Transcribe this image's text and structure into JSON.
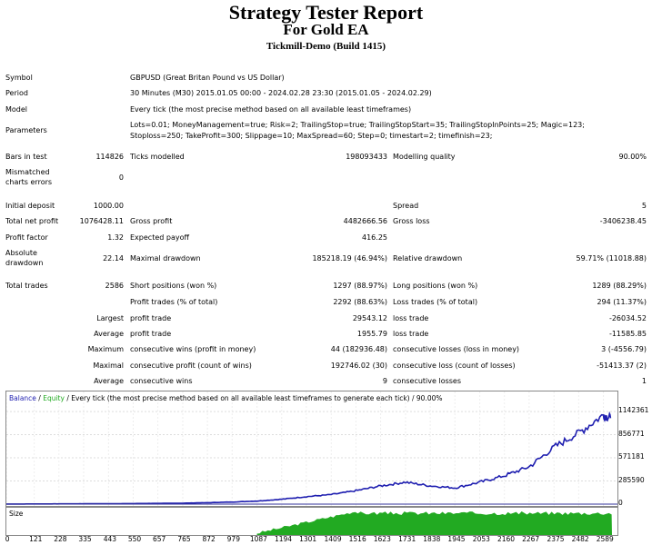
{
  "report": {
    "title": "Strategy Tester Report",
    "subtitle": "For Gold EA",
    "server": "Tickmill-Demo (Build 1415)"
  },
  "info": {
    "symbol_label": "Symbol",
    "symbol_value": "GBPUSD (Great Britan Pound vs US Dollar)",
    "period_label": "Period",
    "period_value": "30 Minutes (M30) 2015.01.05 00:00 - 2024.02.28 23:30 (2015.01.05 - 2024.02.29)",
    "model_label": "Model",
    "model_value": "Every tick (the most precise method based on all available least timeframes)",
    "params_label": "Parameters",
    "params_line1": "Lots=0.01; MoneyManagement=true; Risk=2; TrailingStop=true; TrailingStopStart=35; TrailingStopInPoints=25; Magic=123;",
    "params_line2": "Stoploss=250; TakeProfit=300; Slippage=10; MaxSpread=60; Step=0; timestart=2; timefinish=23;"
  },
  "stats": {
    "bars_label": "Bars in test",
    "bars_value": "114826",
    "ticks_label": "Ticks modelled",
    "ticks_value": "198093433",
    "quality_label": "Modelling quality",
    "quality_value": "90.00%",
    "mismatch_label1": "Mismatched",
    "mismatch_label2": "charts errors",
    "mismatch_value": "0",
    "deposit_label": "Initial deposit",
    "deposit_value": "1000.00",
    "spread_label": "Spread",
    "spread_value": "5",
    "netprofit_label": "Total net profit",
    "netprofit_value": "1076428.11",
    "grossprofit_label": "Gross profit",
    "grossprofit_value": "4482666.56",
    "grossloss_label": "Gross loss",
    "grossloss_value": "-3406238.45",
    "pf_label": "Profit factor",
    "pf_value": "1.32",
    "payoff_label": "Expected payoff",
    "payoff_value": "416.25",
    "absdd_label1": "Absolute",
    "absdd_label2": "drawdown",
    "absdd_value": "22.14",
    "maxdd_label": "Maximal drawdown",
    "maxdd_value": "185218.19 (46.94%)",
    "reldd_label": "Relative drawdown",
    "reldd_value": "59.71% (11018.88)",
    "trades_label": "Total trades",
    "trades_value": "2586",
    "short_label": "Short positions (won %)",
    "short_value": "1297 (88.97%)",
    "long_label": "Long positions (won %)",
    "long_value": "1289 (88.29%)",
    "profit_trades_label": "Profit trades (% of total)",
    "profit_trades_value": "2292 (88.63%)",
    "loss_trades_label": "Loss trades (% of total)",
    "loss_trades_value": "294 (11.37%)",
    "largest_label": "Largest",
    "largest_profit_label": "profit trade",
    "largest_profit_value": "29543.12",
    "largest_loss_label": "loss trade",
    "largest_loss_value": "-26034.52",
    "average_label": "Average",
    "average_profit_label": "profit trade",
    "average_profit_value": "1955.79",
    "average_loss_label": "loss trade",
    "average_loss_value": "-11585.85",
    "maximum_label": "Maximum",
    "max_wins_label": "consecutive wins (profit in money)",
    "max_wins_value": "44 (182936.48)",
    "max_losses_label": "consecutive losses (loss in money)",
    "max_losses_value": "3 (-4556.79)",
    "maximal_label": "Maximal",
    "maxl_profit_label": "consecutive profit (count of wins)",
    "maxl_profit_value": "192746.02 (30)",
    "maxl_loss_label": "consecutive loss (count of losses)",
    "maxl_loss_value": "-51413.37 (2)",
    "average2_label": "Average",
    "avg_wins_label": "consecutive wins",
    "avg_wins_value": "9",
    "avg_losses_label": "consecutive losses",
    "avg_losses_value": "1"
  },
  "chart_legend": {
    "balance": "Balance",
    "sep": " / ",
    "equity": "Equity",
    "rest": " / Every tick (the most precise method based on all available least timeframes to generate each tick) / 90.00%"
  },
  "size_label": "Size",
  "colors": {
    "balance": "#1f1fb0",
    "equity": "#22aa22",
    "size": "#22aa22"
  },
  "chart_data": {
    "type": "line",
    "x": [
      0,
      121,
      228,
      335,
      443,
      550,
      657,
      765,
      872,
      979,
      1087,
      1194,
      1301,
      1409,
      1516,
      1623,
      1731,
      1838,
      1945,
      2053,
      2160,
      2267,
      2375,
      2482,
      2589,
      2620
    ],
    "series": [
      {
        "name": "Balance",
        "values": [
          1000,
          2000,
          3000,
          4000,
          5000,
          7000,
          9000,
          12000,
          18000,
          26000,
          38000,
          60000,
          92000,
          118000,
          165000,
          225000,
          270000,
          225000,
          200000,
          270000,
          350000,
          460000,
          700000,
          880000,
          1100000,
          1060000
        ]
      }
    ],
    "y_ticks": [
      "1142361",
      "856771",
      "571181",
      "285590",
      "0"
    ],
    "y_tick_values": [
      1142361,
      856771,
      571181,
      285590,
      0
    ],
    "x_ticks": [
      "0",
      "121",
      "228",
      "335",
      "443",
      "550",
      "657",
      "765",
      "872",
      "979",
      "1087",
      "1194",
      "1301",
      "1409",
      "1516",
      "1623",
      "1731",
      "1838",
      "1945",
      "2053",
      "2160",
      "2267",
      "2375",
      "2482",
      "2589"
    ],
    "ylim": [
      0,
      1300000
    ],
    "xlim": [
      0,
      2650
    ],
    "size_start": 1087,
    "size_ramp_end": 1516
  }
}
